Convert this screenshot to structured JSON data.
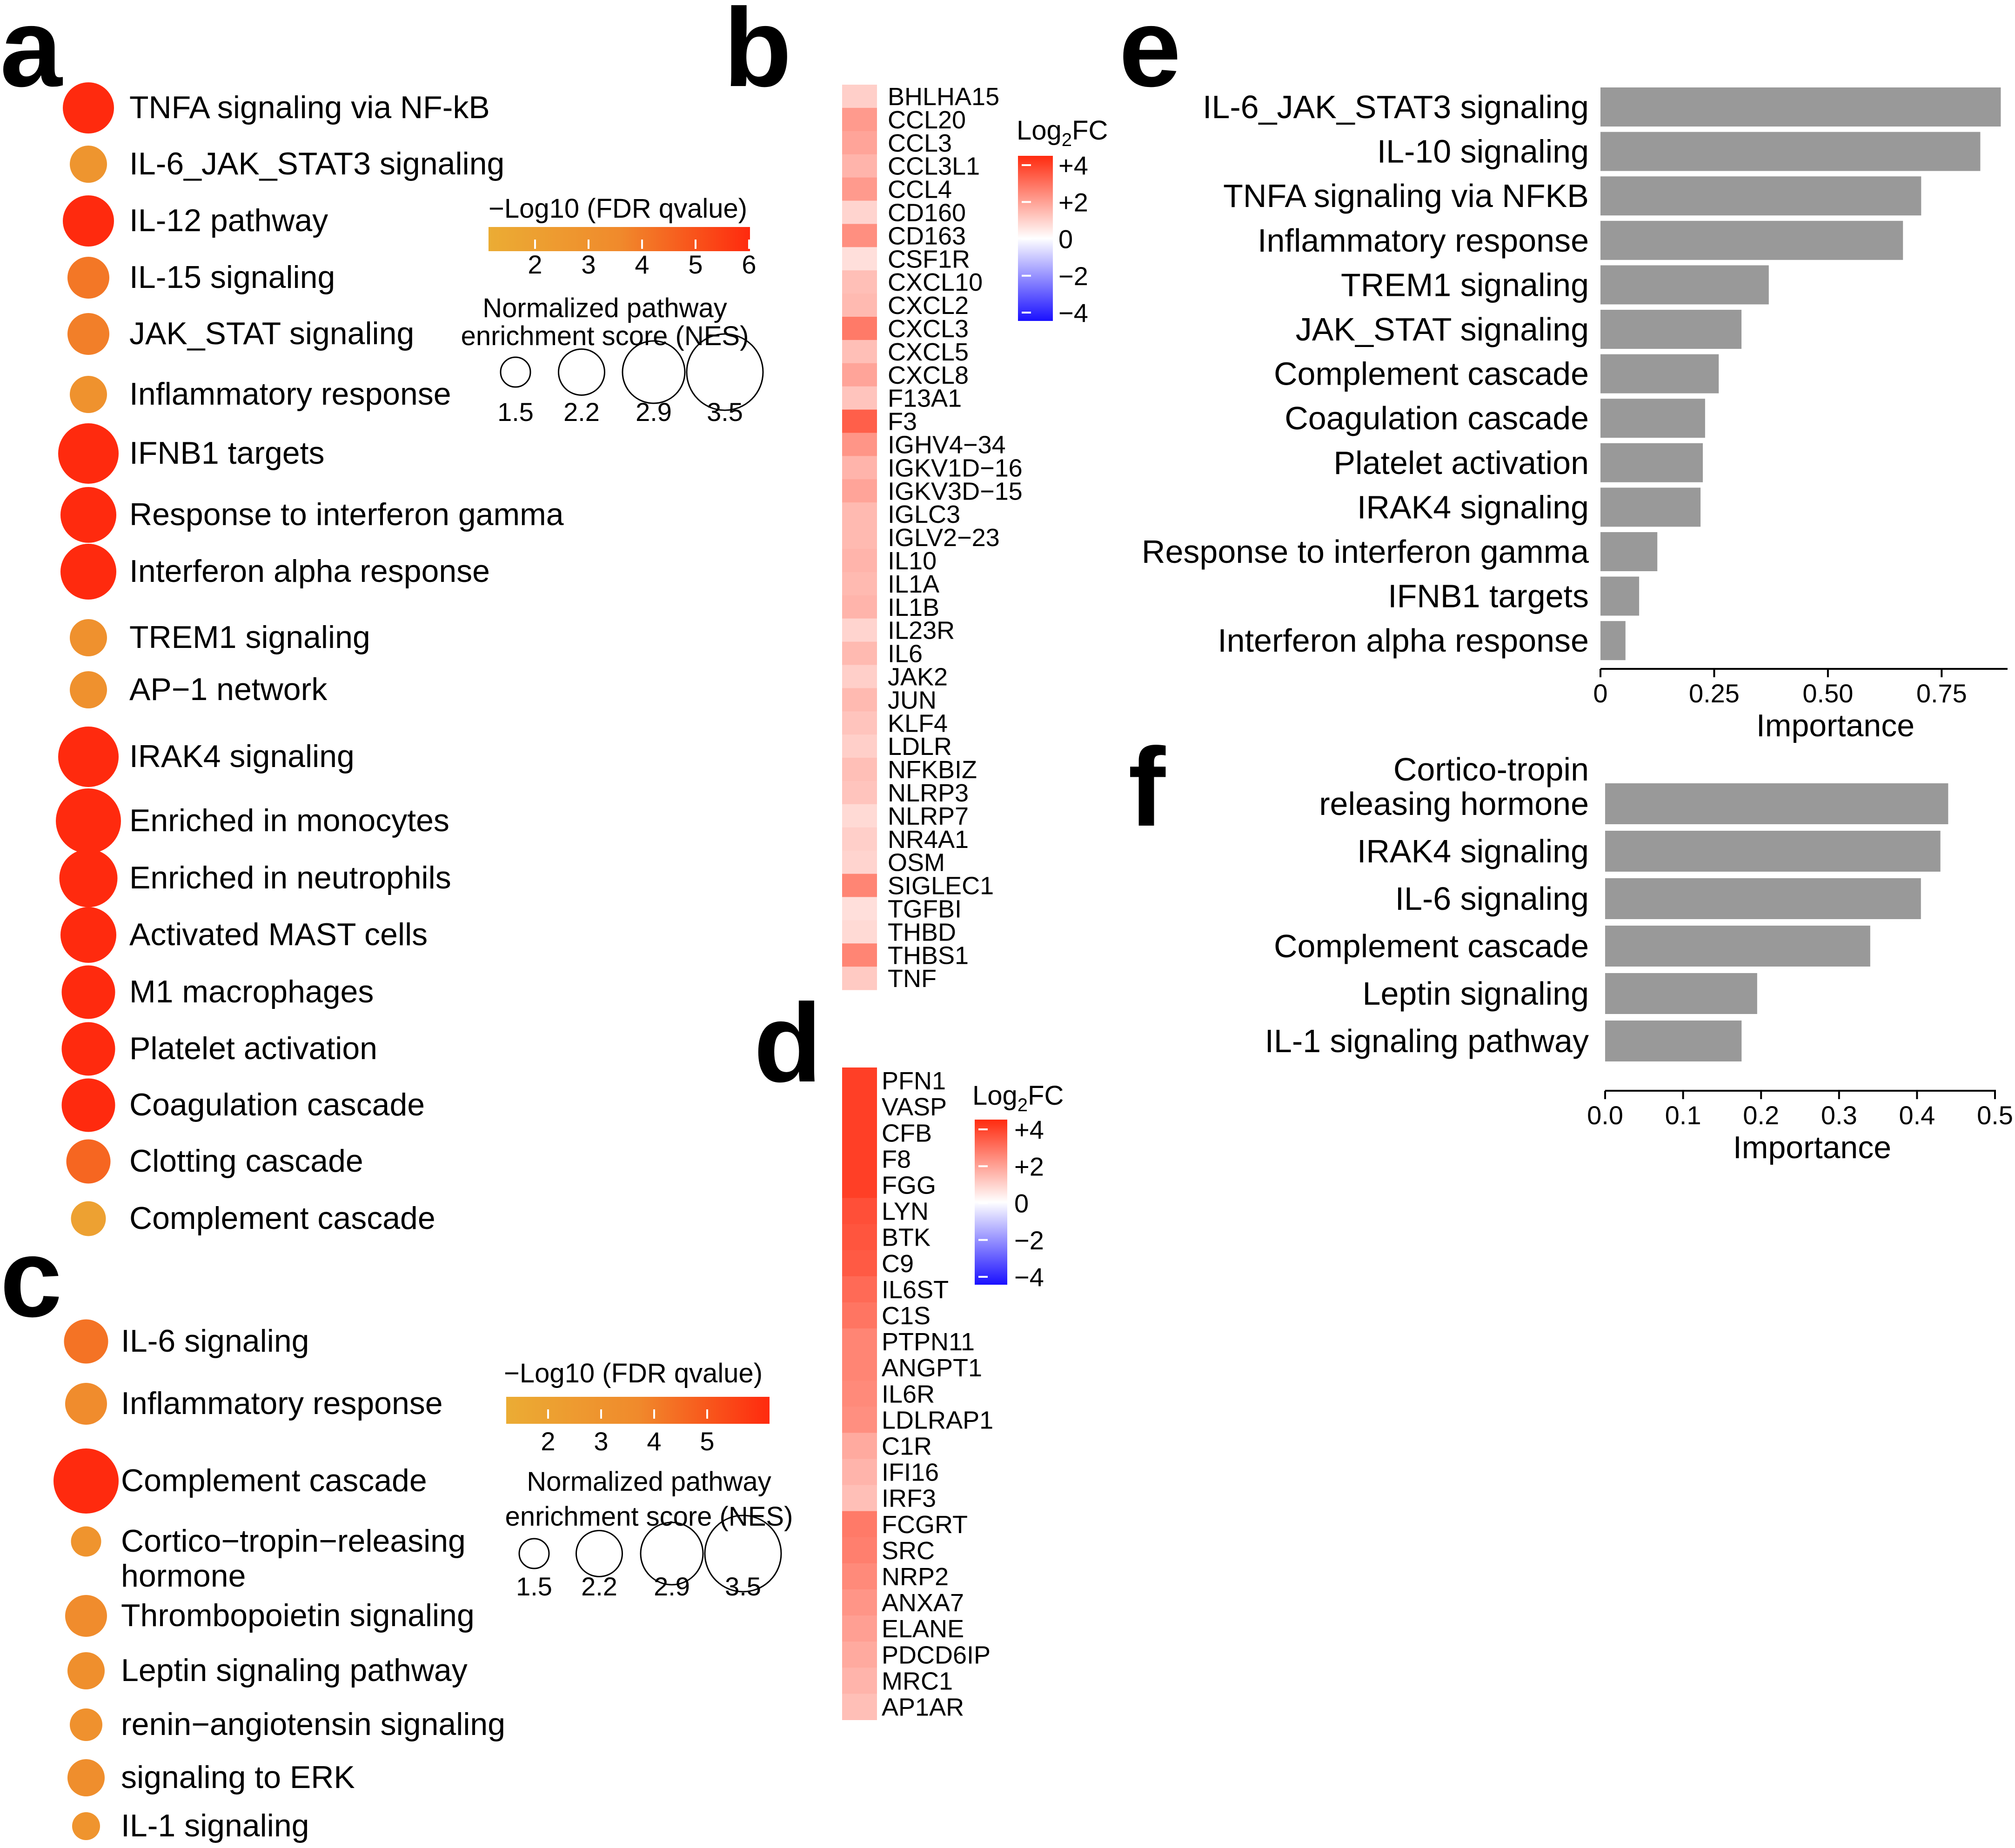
{
  "colors": {
    "fdr_low": "#ebac34",
    "fdr_mid": "#f08a2c",
    "fdr_high": "#ff2a0e",
    "fc_pos": "#ff2a0e",
    "fc_neg": "#1a10ff",
    "bar": "#999999"
  },
  "panels": {
    "a": {
      "label": "a",
      "pathways": [
        {
          "name": "TNFA signaling via NF-kB",
          "nes": 2.9,
          "fdr": 6
        },
        {
          "name": "IL-6_JAK_STAT3 signaling",
          "nes": 2.3,
          "fdr": 3
        },
        {
          "name": "IL-12 pathway",
          "nes": 2.9,
          "fdr": 6
        },
        {
          "name": "IL-15 signaling",
          "nes": 2.5,
          "fdr": 4.2
        },
        {
          "name": "JAK_STAT signaling",
          "nes": 2.5,
          "fdr": 4
        },
        {
          "name": "Inflammatory response",
          "nes": 2.3,
          "fdr": 3.2
        },
        {
          "name": "IFNB1 targets",
          "nes": 3.3,
          "fdr": 6
        },
        {
          "name": "Response to interferon gamma",
          "nes": 3.1,
          "fdr": 6
        },
        {
          "name": "Interferon alpha response",
          "nes": 3.1,
          "fdr": 6
        },
        {
          "name": "TREM1 signaling",
          "nes": 2.3,
          "fdr": 3.3
        },
        {
          "name": "AP−1 network",
          "nes": 2.3,
          "fdr": 3.3
        },
        {
          "name": "IRAK4 signaling",
          "nes": 3.3,
          "fdr": 6
        },
        {
          "name": "Enriched in monocytes",
          "nes": 3.5,
          "fdr": 6
        },
        {
          "name": "Enriched in neutrophils",
          "nes": 3.2,
          "fdr": 6
        },
        {
          "name": "Activated MAST cells",
          "nes": 3.1,
          "fdr": 6
        },
        {
          "name": "M1 macrophages",
          "nes": 3.0,
          "fdr": 6
        },
        {
          "name": "Platelet activation",
          "nes": 3.0,
          "fdr": 6
        },
        {
          "name": "Coagulation cascade",
          "nes": 3.0,
          "fdr": 6
        },
        {
          "name": "Clotting cascade",
          "nes": 2.6,
          "fdr": 4.6
        },
        {
          "name": "Complement cascade",
          "nes": 2.2,
          "fdr": 2.2
        }
      ],
      "fdr_legend": {
        "title": "−Log10 (FDR qvalue)",
        "ticks": [
          "2",
          "3",
          "4",
          "5",
          "6"
        ]
      },
      "nes_legend": {
        "title_line1": "Normalized pathway",
        "title_line2": "enrichment score (NES)",
        "ticks": [
          "1.5",
          "2.2",
          "2.9",
          "3.5"
        ]
      }
    },
    "b": {
      "label": "b",
      "legend_title": "Log",
      "legend_sub": "2",
      "legend_suffix": "FC",
      "legend_ticks": [
        "+4",
        "+2",
        "0",
        "−2",
        "−4"
      ],
      "genes": [
        {
          "gene": "BHLHA15",
          "fc": 0.9
        },
        {
          "gene": "CCL20",
          "fc": 1.9
        },
        {
          "gene": "CCL3",
          "fc": 1.7
        },
        {
          "gene": "CCL3L1",
          "fc": 1.4
        },
        {
          "gene": "CCL4",
          "fc": 1.9
        },
        {
          "gene": "CD160",
          "fc": 0.8
        },
        {
          "gene": "CD163",
          "fc": 2.1
        },
        {
          "gene": "CSF1R",
          "fc": 0.6
        },
        {
          "gene": "CXCL10",
          "fc": 1.2
        },
        {
          "gene": "CXCL2",
          "fc": 1.3
        },
        {
          "gene": "CXCL3",
          "fc": 2.5
        },
        {
          "gene": "CXCL5",
          "fc": 1.2
        },
        {
          "gene": "CXCL8",
          "fc": 1.7
        },
        {
          "gene": "F13A1",
          "fc": 1.1
        },
        {
          "gene": "F3",
          "fc": 3.0
        },
        {
          "gene": "IGHV4−34",
          "fc": 2.0
        },
        {
          "gene": "IGKV1D−16",
          "fc": 1.4
        },
        {
          "gene": "IGKV3D−15",
          "fc": 1.7
        },
        {
          "gene": "IGLC3",
          "fc": 1.3
        },
        {
          "gene": "IGLV2−23",
          "fc": 1.3
        },
        {
          "gene": "IL10",
          "fc": 1.4
        },
        {
          "gene": "IL1A",
          "fc": 1.3
        },
        {
          "gene": "IL1B",
          "fc": 1.4
        },
        {
          "gene": "IL23R",
          "fc": 0.8
        },
        {
          "gene": "IL6",
          "fc": 1.3
        },
        {
          "gene": "JAK2",
          "fc": 0.9
        },
        {
          "gene": "JUN",
          "fc": 1.3
        },
        {
          "gene": "KLF4",
          "fc": 1.1
        },
        {
          "gene": "LDLR",
          "fc": 0.9
        },
        {
          "gene": "NFKBIZ",
          "fc": 1.2
        },
        {
          "gene": "NLRP3",
          "fc": 1.1
        },
        {
          "gene": "NLRP7",
          "fc": 0.7
        },
        {
          "gene": "NR4A1",
          "fc": 0.9
        },
        {
          "gene": "OSM",
          "fc": 0.8
        },
        {
          "gene": "SIGLEC1",
          "fc": 2.3
        },
        {
          "gene": "TGFBI",
          "fc": 0.6
        },
        {
          "gene": "THBD",
          "fc": 0.7
        },
        {
          "gene": "THBS1",
          "fc": 2.3
        },
        {
          "gene": "TNF",
          "fc": 1.0
        }
      ]
    },
    "c": {
      "label": "c",
      "pathways": [
        {
          "name": "IL-6 signaling",
          "nes": 2.6,
          "fdr": 4.3
        },
        {
          "name": "Inflammatory response",
          "nes": 2.5,
          "fdr": 3.6
        },
        {
          "name": "Complement cascade",
          "nes": 3.5,
          "fdr": 6
        },
        {
          "name": "Cortico−tropin−releasing",
          "name2": "hormone",
          "nes": 2.0,
          "fdr": 3.1
        },
        {
          "name": "Thrombopoietin signaling",
          "nes": 2.5,
          "fdr": 3.6
        },
        {
          "name": "Leptin signaling pathway",
          "nes": 2.3,
          "fdr": 3.4
        },
        {
          "name": "renin−angiotensin signaling",
          "nes": 2.1,
          "fdr": 3.3
        },
        {
          "name": "signaling to ERK",
          "nes": 2.3,
          "fdr": 3.5
        },
        {
          "name": "IL-1 signaling",
          "nes": 1.9,
          "fdr": 3.1
        }
      ],
      "fdr_legend": {
        "title": "−Log10 (FDR qvalue)",
        "ticks": [
          "2",
          "3",
          "4",
          "5"
        ]
      },
      "nes_legend": {
        "title_line1": "Normalized pathway",
        "title_line2": "enrichment score (NES)",
        "ticks": [
          "1.5",
          "2.2",
          "2.9",
          "3.5"
        ]
      }
    },
    "d": {
      "label": "d",
      "legend_title": "Log",
      "legend_sub": "2",
      "legend_suffix": "FC",
      "legend_ticks": [
        "+4",
        "+2",
        "0",
        "−2",
        "−4"
      ],
      "genes": [
        {
          "gene": "PFN1",
          "fc": 3.6
        },
        {
          "gene": "VASP",
          "fc": 3.6
        },
        {
          "gene": "CFB",
          "fc": 3.6
        },
        {
          "gene": "F8",
          "fc": 3.6
        },
        {
          "gene": "FGG",
          "fc": 3.6
        },
        {
          "gene": "LYN",
          "fc": 3.3
        },
        {
          "gene": "BTK",
          "fc": 3.2
        },
        {
          "gene": "C9",
          "fc": 3.1
        },
        {
          "gene": "IL6ST",
          "fc": 2.8
        },
        {
          "gene": "C1S",
          "fc": 2.6
        },
        {
          "gene": "PTPN11",
          "fc": 2.3
        },
        {
          "gene": "ANGPT1",
          "fc": 2.3
        },
        {
          "gene": "IL6R",
          "fc": 2.2
        },
        {
          "gene": "LDLRAP1",
          "fc": 2.1
        },
        {
          "gene": "C1R",
          "fc": 1.6
        },
        {
          "gene": "IFI16",
          "fc": 1.4
        },
        {
          "gene": "IRF3",
          "fc": 1.2
        },
        {
          "gene": "FCGRT",
          "fc": 2.5
        },
        {
          "gene": "SRC",
          "fc": 2.4
        },
        {
          "gene": "NRP2",
          "fc": 2.2
        },
        {
          "gene": "ANXA7",
          "fc": 2.0
        },
        {
          "gene": "ELANE",
          "fc": 1.8
        },
        {
          "gene": "PDCD6IP",
          "fc": 1.6
        },
        {
          "gene": "MRC1",
          "fc": 1.4
        },
        {
          "gene": "AP1AR",
          "fc": 1.2
        }
      ]
    },
    "e": {
      "label": "e",
      "chart_data": {
        "type": "bar",
        "orientation": "horizontal",
        "categories": [
          "IL-6_JAK_STAT3 signaling",
          "IL-10 signaling",
          "TNFA signaling via NFKB",
          "Inflammatory response",
          "TREM1 signaling",
          "JAK_STAT signaling",
          "Complement cascade",
          "Coagulation cascade",
          "Platelet activation",
          "IRAK4 signaling",
          "Response to interferon gamma",
          "IFNB1 targets",
          "Interferon alpha response"
        ],
        "values": [
          0.88,
          0.835,
          0.705,
          0.665,
          0.37,
          0.31,
          0.26,
          0.23,
          0.225,
          0.22,
          0.125,
          0.085,
          0.055
        ],
        "xlabel": "Importance",
        "xlim": [
          0,
          0.9
        ],
        "xticks": [
          0,
          0.25,
          0.5,
          0.75
        ],
        "xtick_labels": [
          "0",
          "0.25",
          "0.50",
          "0.75"
        ]
      }
    },
    "f": {
      "label": "f",
      "chart_data": {
        "type": "bar",
        "orientation": "horizontal",
        "categories": [
          "Cortico-tropin releasing hormone",
          "IRAK4 signaling",
          "IL-6 signaling",
          "Complement cascade",
          "Leptin signaling",
          "IL-1 signaling pathway"
        ],
        "category_lines": [
          [
            "Cortico-tropin",
            "releasing hormone"
          ],
          [
            "IRAK4 signaling"
          ],
          [
            "IL-6 signaling"
          ],
          [
            "Complement cascade"
          ],
          [
            "Leptin signaling"
          ],
          [
            "IL-1 signaling pathway"
          ]
        ],
        "values": [
          0.44,
          0.43,
          0.405,
          0.34,
          0.195,
          0.175
        ],
        "xlabel": "Importance",
        "xlim": [
          0,
          0.5
        ],
        "xticks": [
          0,
          0.1,
          0.2,
          0.3,
          0.4,
          0.5
        ],
        "xtick_labels": [
          "0.0",
          "0.1",
          "0.2",
          "0.3",
          "0.4",
          "0.5"
        ]
      }
    }
  }
}
